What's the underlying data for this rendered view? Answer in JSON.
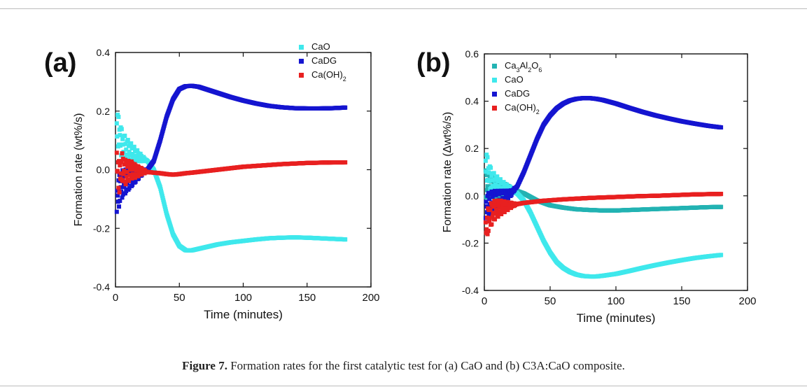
{
  "caption": {
    "label": "Figure 7.",
    "text": " Formation rates for the first catalytic test for (a) CaO and (b) C3A:CaO composite."
  },
  "chart_data": [
    {
      "type": "scatter",
      "panel_label": "(a)",
      "xlabel": "Time (minutes)",
      "ylabel": "Formation rate (wt%/s)",
      "xlim": [
        0,
        200
      ],
      "ylim": [
        -0.4,
        0.4
      ],
      "xticks": [
        0,
        50,
        100,
        150,
        200
      ],
      "yticks": [
        -0.4,
        -0.2,
        0.0,
        0.2,
        0.4
      ],
      "ytick_labels": [
        "-0.4",
        "-0.2",
        "0.0",
        "0.2",
        "0.4"
      ],
      "legend_position": "top-right",
      "series": [
        {
          "name": "CaO",
          "color": "#3fe8ec",
          "x": [
            1,
            3,
            5,
            8,
            12,
            16,
            20,
            25,
            30,
            35,
            40,
            45,
            50,
            55,
            60,
            65,
            70,
            80,
            90,
            100,
            110,
            120,
            130,
            140,
            150,
            160,
            170,
            180
          ],
          "y": [
            0.15,
            0.12,
            0.09,
            0.07,
            0.06,
            0.05,
            0.04,
            0.03,
            0.0,
            -0.06,
            -0.15,
            -0.22,
            -0.26,
            -0.275,
            -0.275,
            -0.27,
            -0.265,
            -0.255,
            -0.248,
            -0.243,
            -0.238,
            -0.234,
            -0.232,
            -0.231,
            -0.232,
            -0.234,
            -0.236,
            -0.238
          ]
        },
        {
          "name": "CaDG",
          "color": "#1515d0",
          "x": [
            1,
            3,
            5,
            8,
            12,
            16,
            20,
            25,
            30,
            35,
            40,
            45,
            50,
            55,
            60,
            65,
            70,
            80,
            90,
            100,
            110,
            120,
            130,
            140,
            150,
            160,
            170,
            180
          ],
          "y": [
            -0.1,
            -0.07,
            -0.05,
            -0.04,
            -0.03,
            -0.02,
            -0.01,
            0.0,
            0.03,
            0.1,
            0.18,
            0.24,
            0.275,
            0.285,
            0.286,
            0.283,
            0.276,
            0.262,
            0.248,
            0.236,
            0.226,
            0.218,
            0.213,
            0.21,
            0.209,
            0.209,
            0.21,
            0.212
          ]
        },
        {
          "name": "Ca(OH)2",
          "color": "#e82020",
          "x": [
            1,
            3,
            5,
            8,
            12,
            16,
            20,
            25,
            30,
            35,
            40,
            45,
            50,
            55,
            60,
            70,
            80,
            90,
            100,
            110,
            120,
            130,
            140,
            150,
            160,
            170,
            180
          ],
          "y": [
            0.02,
            -0.03,
            0.01,
            -0.01,
            0.0,
            -0.005,
            -0.005,
            -0.008,
            -0.01,
            -0.012,
            -0.015,
            -0.017,
            -0.015,
            -0.012,
            -0.01,
            -0.005,
            0.0,
            0.005,
            0.01,
            0.013,
            0.016,
            0.019,
            0.021,
            0.023,
            0.024,
            0.025,
            0.025
          ]
        }
      ],
      "legend": [
        {
          "name": "CaO",
          "label": "CaO",
          "color": "#3fe8ec"
        },
        {
          "name": "CaDG",
          "label": "CaDG",
          "color": "#1515d0"
        },
        {
          "name": "Ca(OH)2",
          "label": "Ca(OH)",
          "sub": "2",
          "color": "#e82020"
        }
      ]
    },
    {
      "type": "scatter",
      "panel_label": "(b)",
      "xlabel": "Time (minutes)",
      "ylabel": "Formation rate (Δwt%/s)",
      "xlim": [
        0,
        200
      ],
      "ylim": [
        -0.4,
        0.6
      ],
      "xticks": [
        0,
        50,
        100,
        150,
        200
      ],
      "yticks": [
        -0.4,
        -0.2,
        0.0,
        0.2,
        0.4,
        0.6
      ],
      "ytick_labels": [
        "-0.4",
        "-0.2",
        "0.0",
        "0.2",
        "0.4",
        "0.6"
      ],
      "legend_position": "top-left",
      "series": [
        {
          "name": "Ca3Al2O6",
          "color": "#23b3b3",
          "x": [
            1,
            3,
            5,
            8,
            12,
            16,
            20,
            25,
            30,
            35,
            40,
            45,
            50,
            55,
            60,
            70,
            80,
            90,
            100,
            110,
            120,
            130,
            140,
            150,
            160,
            170,
            180
          ],
          "y": [
            0.05,
            0.04,
            0.04,
            0.035,
            0.03,
            0.03,
            0.025,
            0.02,
            0.01,
            -0.005,
            -0.02,
            -0.03,
            -0.04,
            -0.045,
            -0.05,
            -0.057,
            -0.06,
            -0.062,
            -0.062,
            -0.06,
            -0.058,
            -0.056,
            -0.054,
            -0.052,
            -0.05,
            -0.048,
            -0.047
          ]
        },
        {
          "name": "CaO",
          "color": "#3fe8ec",
          "x": [
            1,
            3,
            5,
            8,
            12,
            16,
            20,
            25,
            30,
            35,
            40,
            45,
            50,
            55,
            60,
            65,
            70,
            75,
            80,
            85,
            90,
            100,
            110,
            120,
            130,
            140,
            150,
            160,
            170,
            180
          ],
          "y": [
            0.14,
            0.1,
            0.07,
            0.05,
            0.04,
            0.03,
            0.025,
            0.01,
            -0.02,
            -0.07,
            -0.13,
            -0.19,
            -0.24,
            -0.28,
            -0.305,
            -0.322,
            -0.333,
            -0.339,
            -0.341,
            -0.341,
            -0.338,
            -0.33,
            -0.318,
            -0.305,
            -0.293,
            -0.282,
            -0.272,
            -0.263,
            -0.256,
            -0.25
          ]
        },
        {
          "name": "CaDG",
          "color": "#1515d0",
          "x": [
            1,
            3,
            5,
            8,
            12,
            16,
            20,
            25,
            30,
            35,
            40,
            45,
            50,
            55,
            60,
            65,
            70,
            75,
            80,
            85,
            90,
            100,
            110,
            120,
            130,
            140,
            150,
            160,
            170,
            180
          ],
          "y": [
            -0.05,
            -0.04,
            -0.03,
            -0.02,
            -0.01,
            0.0,
            0.01,
            0.04,
            0.1,
            0.17,
            0.24,
            0.3,
            0.34,
            0.37,
            0.39,
            0.403,
            0.41,
            0.413,
            0.413,
            0.41,
            0.405,
            0.39,
            0.372,
            0.355,
            0.34,
            0.327,
            0.315,
            0.305,
            0.296,
            0.289
          ]
        },
        {
          "name": "Ca(OH)2",
          "color": "#e82020",
          "x": [
            1,
            3,
            5,
            8,
            12,
            16,
            20,
            25,
            30,
            35,
            40,
            45,
            50,
            60,
            70,
            80,
            90,
            100,
            110,
            120,
            130,
            140,
            150,
            160,
            170,
            180
          ],
          "y": [
            -0.15,
            -0.1,
            -0.08,
            -0.06,
            -0.05,
            -0.045,
            -0.04,
            -0.035,
            -0.03,
            -0.027,
            -0.024,
            -0.021,
            -0.019,
            -0.015,
            -0.012,
            -0.009,
            -0.007,
            -0.005,
            -0.003,
            -0.001,
            0.0,
            0.002,
            0.004,
            0.006,
            0.007,
            0.008
          ]
        }
      ],
      "legend": [
        {
          "name": "Ca3Al2O6",
          "label": "Ca",
          "parts": [
            "Ca",
            "3",
            "Al",
            "2",
            "O",
            "6"
          ],
          "color": "#23b3b3"
        },
        {
          "name": "CaO",
          "label": "CaO",
          "color": "#3fe8ec"
        },
        {
          "name": "CaDG",
          "label": "CaDG",
          "color": "#1515d0"
        },
        {
          "name": "Ca(OH)2",
          "label": "Ca(OH)",
          "sub": "2",
          "color": "#e82020"
        }
      ]
    }
  ]
}
